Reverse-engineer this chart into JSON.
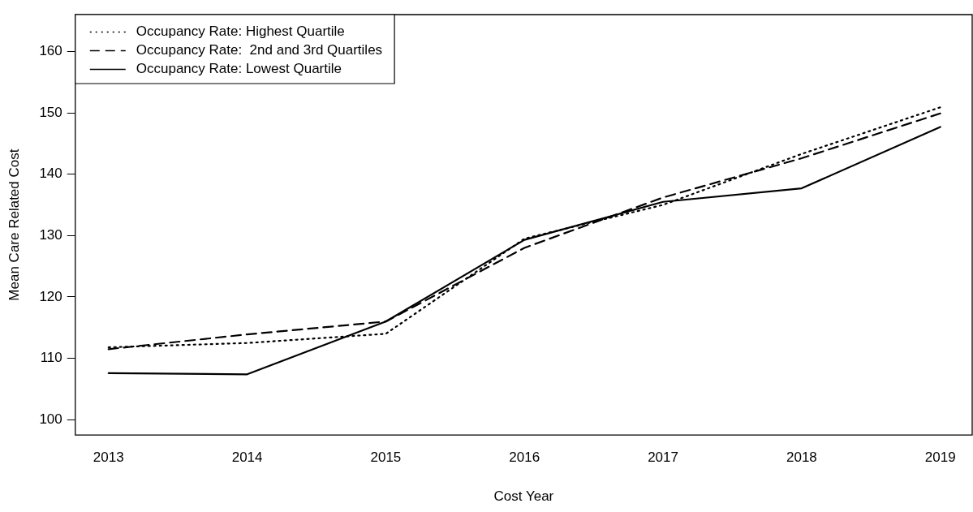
{
  "chart_data": {
    "type": "line",
    "xlabel": "Cost Year",
    "ylabel": "Mean Care Related Cost",
    "x": [
      2013,
      2014,
      2015,
      2016,
      2017,
      2018,
      2019
    ],
    "xlim": [
      2012.76,
      2019.23
    ],
    "xticks": [
      2013,
      2014,
      2015,
      2016,
      2017,
      2018,
      2019
    ],
    "ylim": [
      97.5,
      166
    ],
    "yticks": [
      100,
      110,
      120,
      130,
      140,
      150,
      160
    ],
    "grid": false,
    "legend": "top left",
    "marker": "none",
    "series": [
      {
        "name": "Occupancy Rate: Highest Quartile",
        "color": "#000000",
        "line_style": "dotted",
        "values": [
          111.8,
          112.5,
          114.0,
          129.5,
          135.0,
          143.3,
          150.9
        ]
      },
      {
        "name": "Occupancy Rate:  2nd and 3rd Quartiles",
        "color": "#000000",
        "line_style": "dashed",
        "values": [
          111.5,
          113.9,
          116.0,
          128.0,
          136.2,
          142.6,
          149.9
        ]
      },
      {
        "name": "Occupancy Rate: Lowest Quartile",
        "color": "#000000",
        "line_style": "solid",
        "values": [
          107.6,
          107.4,
          116.0,
          129.3,
          135.5,
          137.7,
          147.7
        ]
      }
    ]
  }
}
